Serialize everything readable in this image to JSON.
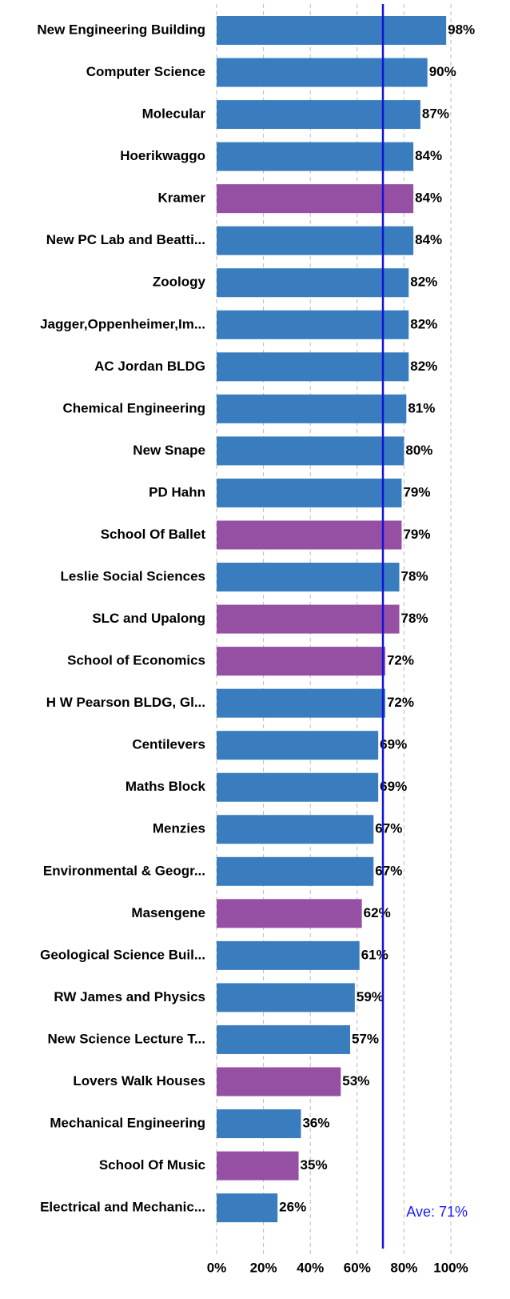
{
  "chart_data": {
    "type": "barh",
    "categories": [
      "New Engineering Building",
      "Computer Science",
      "Molecular",
      "Hoerikwaggo",
      "Kramer",
      "New PC Lab and Beatti...",
      "Zoology",
      "Jagger,Oppenheimer,Im...",
      "AC Jordan BLDG",
      "Chemical Engineering",
      "New Snape",
      "PD Hahn",
      "School Of Ballet",
      "Leslie Social Sciences",
      "SLC and Upalong",
      "School of Economics",
      "H W Pearson BLDG, Gl...",
      "Centilevers",
      "Maths Block",
      "Menzies",
      "Environmental & Geogr...",
      "Masengene",
      "Geological Science Buil...",
      "RW James and Physics",
      "New Science Lecture T...",
      "Lovers Walk Houses",
      "Mechanical Engineering",
      "School Of Music",
      "Electrical and Mechanic..."
    ],
    "values": [
      98,
      90,
      87,
      84,
      84,
      84,
      82,
      82,
      82,
      81,
      80,
      79,
      79,
      78,
      78,
      72,
      72,
      69,
      69,
      67,
      67,
      62,
      61,
      59,
      57,
      53,
      36,
      35,
      26
    ],
    "value_labels": [
      "98%",
      "90%",
      "87%",
      "84%",
      "84%",
      "84%",
      "82%",
      "82%",
      "82%",
      "81%",
      "80%",
      "79%",
      "79%",
      "78%",
      "78%",
      "72%",
      "72%",
      "69%",
      "69%",
      "67%",
      "67%",
      "62%",
      "61%",
      "59%",
      "57%",
      "53%",
      "36%",
      "35%",
      "26%"
    ],
    "colors": [
      "#3a7dbf",
      "#3a7dbf",
      "#3a7dbf",
      "#3a7dbf",
      "#9550a4",
      "#3a7dbf",
      "#3a7dbf",
      "#3a7dbf",
      "#3a7dbf",
      "#3a7dbf",
      "#3a7dbf",
      "#3a7dbf",
      "#9550a4",
      "#3a7dbf",
      "#9550a4",
      "#9550a4",
      "#3a7dbf",
      "#3a7dbf",
      "#3a7dbf",
      "#3a7dbf",
      "#3a7dbf",
      "#9550a4",
      "#3a7dbf",
      "#3a7dbf",
      "#3a7dbf",
      "#9550a4",
      "#3a7dbf",
      "#9550a4",
      "#3a7dbf"
    ],
    "xlim": [
      0,
      100
    ],
    "xticks": [
      {
        "value": 0,
        "label": "0%"
      },
      {
        "value": 20,
        "label": "20%"
      },
      {
        "value": 40,
        "label": "40%"
      },
      {
        "value": 60,
        "label": "60%"
      },
      {
        "value": 80,
        "label": "80%"
      },
      {
        "value": 100,
        "label": "100%"
      }
    ],
    "grid": true,
    "average": 71,
    "average_label": "Ave: 71%",
    "average_color": "#1414d9"
  }
}
